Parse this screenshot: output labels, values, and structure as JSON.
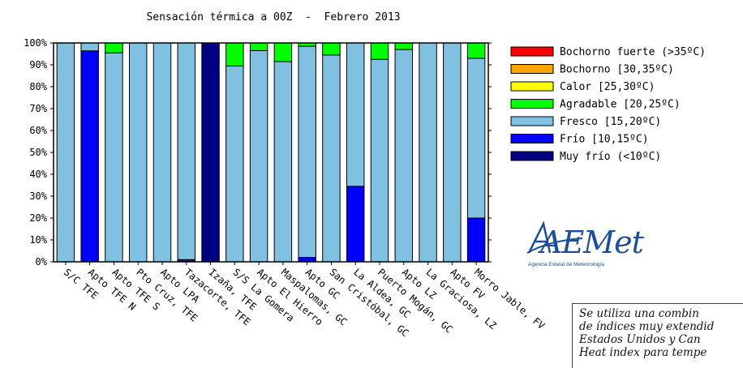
{
  "chart_data": {
    "type": "bar",
    "stacked": true,
    "title": "Sensación térmica a 00Z  -  Febrero 2013",
    "ylim": [
      0,
      100
    ],
    "yticks": [
      "0%",
      "10%",
      "20%",
      "30%",
      "40%",
      "50%",
      "60%",
      "70%",
      "80%",
      "90%",
      "100%"
    ],
    "categories": [
      "S/C TFE",
      "Apto TFE N",
      "Apto TFE S",
      "Pto Cruz, TFE",
      "Apto LPA",
      "Tazacorte, TFE",
      "Izaña, TFE",
      "S/S La Gomera",
      "Apto El Hierro",
      "Maspalomas, GC",
      "Apto GC",
      "San Cristóbal, GC",
      "La Aldea, GC",
      "Puerto Mogán, GC",
      "Apto LZ",
      "La Graciosa, LZ",
      "Apto FV",
      "Morro Jable, FV"
    ],
    "series": [
      {
        "name": "Muy frío (<10ºC)",
        "color": "#000080",
        "values": [
          0,
          0,
          0,
          0,
          0,
          0,
          100,
          0,
          0,
          0,
          0,
          0,
          0,
          0,
          0,
          0,
          0,
          0
        ]
      },
      {
        "name": "Frío [10,15ºC)",
        "color": "#0000ff",
        "values": [
          0,
          96.4,
          0,
          0,
          0,
          1,
          0,
          0,
          0,
          0,
          2,
          0,
          34.5,
          0,
          0,
          0,
          0,
          20
        ]
      },
      {
        "name": "Fresco [15,20ºC)",
        "color": "#80c0e0",
        "values": [
          100,
          3.6,
          95.5,
          100,
          100,
          99,
          0,
          89.5,
          96.5,
          91.5,
          96.5,
          94.5,
          65.5,
          92.5,
          97,
          100,
          100,
          73
        ]
      },
      {
        "name": "Agradable [20,25ºC)",
        "color": "#00ff00",
        "values": [
          0,
          0,
          4.5,
          0,
          0,
          0,
          0,
          10.5,
          3.5,
          8.5,
          1.5,
          5.5,
          0,
          7.5,
          3,
          0,
          0,
          7
        ]
      },
      {
        "name": "Calor [25,30ºC)",
        "color": "#ffff00",
        "values": [
          0,
          0,
          0,
          0,
          0,
          0,
          0,
          0,
          0,
          0,
          0,
          0,
          0,
          0,
          0,
          0,
          0,
          0
        ]
      },
      {
        "name": "Bochorno [30,35ºC)",
        "color": "#ffa500",
        "values": [
          0,
          0,
          0,
          0,
          0,
          0,
          0,
          0,
          0,
          0,
          0,
          0,
          0,
          0,
          0,
          0,
          0,
          0
        ]
      },
      {
        "name": "Bochorno fuerte (>35ºC)",
        "color": "#ff0000",
        "values": [
          0,
          0,
          0,
          0,
          0,
          0,
          0,
          0,
          0,
          0,
          0,
          0,
          0,
          0,
          0,
          0,
          0,
          0
        ]
      }
    ],
    "legend_order": [
      "Bochorno fuerte (>35ºC)",
      "Bochorno [30,35ºC)",
      "Calor [25,30ºC)",
      "Agradable [20,25ºC)",
      "Fresco [15,20ºC)",
      "Frío [10,15ºC)",
      "Muy frío (<10ºC)"
    ],
    "legend_position": "right"
  },
  "logo": {
    "text": "AEMet",
    "subtitle": "Agencia Estatal de Meteorología"
  },
  "note": {
    "lines": [
      "Se utiliza una combin",
      "de índices muy extendid",
      "Estados Unidos y Can",
      "Heat index para tempe"
    ]
  }
}
